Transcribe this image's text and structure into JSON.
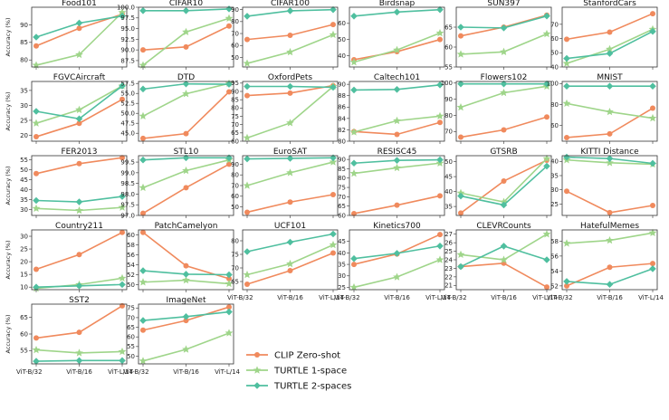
{
  "figure": {
    "ylabel": "Accuracy (%)",
    "x_categories": [
      "ViT-B/32",
      "ViT-B/16",
      "ViT-L/14"
    ]
  },
  "legend": {
    "items": [
      {
        "label": "CLIP Zero-shot",
        "color": "#f08a5d",
        "marker": "circle"
      },
      {
        "label": "TURTLE 1-space",
        "color": "#9fd58a",
        "marker": "star"
      },
      {
        "label": "TURTLE 2-spaces",
        "color": "#4fbf9f",
        "marker": "diamond"
      }
    ]
  },
  "chart_data": [
    {
      "type": "line",
      "title": "Food101",
      "ylim": [
        78,
        95
      ],
      "yticks": [
        80,
        85,
        90
      ],
      "series": [
        {
          "name": "CLIP Zero-shot",
          "values": [
            84,
            89,
            93
          ]
        },
        {
          "name": "TURTLE 1-space",
          "values": [
            78.5,
            81.5,
            93.5
          ]
        },
        {
          "name": "TURTLE 2-spaces",
          "values": [
            86.5,
            90.5,
            92.5
          ]
        }
      ]
    },
    {
      "type": "line",
      "title": "CIFAR10",
      "ylim": [
        86,
        100
      ],
      "yticks": [
        87.5,
        90.0,
        92.5,
        95.0,
        97.5,
        100.0
      ],
      "series": [
        {
          "name": "CLIP Zero-shot",
          "values": [
            90,
            90.7,
            95.6
          ]
        },
        {
          "name": "TURTLE 1-space",
          "values": [
            86.4,
            94.2,
            97.4
          ]
        },
        {
          "name": "TURTLE 2-spaces",
          "values": [
            99.2,
            99.2,
            99.6
          ]
        }
      ]
    },
    {
      "type": "line",
      "title": "CIFAR100",
      "ylim": [
        42,
        92
      ],
      "yticks": [
        50,
        60,
        70,
        80,
        90
      ],
      "series": [
        {
          "name": "CLIP Zero-shot",
          "values": [
            65,
            68.5,
            77.5
          ]
        },
        {
          "name": "TURTLE 1-space",
          "values": [
            45,
            54.5,
            69
          ]
        },
        {
          "name": "TURTLE 2-spaces",
          "values": [
            84.5,
            89,
            90
          ]
        }
      ]
    },
    {
      "type": "line",
      "title": "Birdsnap",
      "ylim": [
        33,
        70
      ],
      "yticks": [
        40,
        50,
        60
      ],
      "series": [
        {
          "name": "CLIP Zero-shot",
          "values": [
            37.5,
            42.5,
            50
          ]
        },
        {
          "name": "TURTLE 1-space",
          "values": [
            36,
            43.5,
            54
          ]
        },
        {
          "name": "TURTLE 2-spaces",
          "values": [
            64.5,
            67,
            68.5
          ]
        }
      ]
    },
    {
      "type": "line",
      "title": "SUN397",
      "ylim": [
        55,
        70
      ],
      "yticks": [
        55,
        60,
        65
      ],
      "series": [
        {
          "name": "CLIP Zero-shot",
          "values": [
            62.8,
            65,
            68
          ]
        },
        {
          "name": "TURTLE 1-space",
          "values": [
            58.2,
            58.8,
            63.3
          ]
        },
        {
          "name": "TURTLE 2-spaces",
          "values": [
            65,
            64.8,
            67.8
          ]
        }
      ]
    },
    {
      "type": "line",
      "title": "StanfordCars",
      "ylim": [
        40,
        82
      ],
      "yticks": [
        40,
        50,
        60,
        70
      ],
      "series": [
        {
          "name": "CLIP Zero-shot",
          "values": [
            59.5,
            64.5,
            77.5
          ]
        },
        {
          "name": "TURTLE 1-space",
          "values": [
            42.5,
            52.5,
            66.5
          ]
        },
        {
          "name": "TURTLE 2-spaces",
          "values": [
            46,
            49.5,
            65
          ]
        }
      ]
    },
    {
      "type": "line",
      "title": "FGVCAircraft",
      "ylim": [
        18,
        38
      ],
      "yticks": [
        20,
        25,
        30,
        35
      ],
      "series": [
        {
          "name": "CLIP Zero-shot",
          "values": [
            19.5,
            24,
            32
          ]
        },
        {
          "name": "TURTLE 1-space",
          "values": [
            24,
            28.5,
            36.5
          ]
        },
        {
          "name": "TURTLE 2-spaces",
          "values": [
            28,
            25.5,
            36.5
          ]
        }
      ]
    },
    {
      "type": "line",
      "title": "DTD",
      "ylim": [
        43,
        58
      ],
      "yticks": [
        45.0,
        47.5,
        50.0,
        52.5,
        55.0,
        57.5
      ],
      "series": [
        {
          "name": "CLIP Zero-shot",
          "values": [
            43.7,
            44.9,
            55.4
          ]
        },
        {
          "name": "TURTLE 1-space",
          "values": [
            49.3,
            54.9,
            57.5
          ]
        },
        {
          "name": "TURTLE 2-spaces",
          "values": [
            56.1,
            57.4,
            57.3
          ]
        }
      ]
    },
    {
      "type": "line",
      "title": "OxfordPets",
      "ylim": [
        60,
        96
      ],
      "yticks": [
        60,
        65,
        70,
        75,
        80,
        85,
        90,
        95
      ],
      "series": [
        {
          "name": "CLIP Zero-shot",
          "values": [
            87.5,
            89,
            93.5
          ]
        },
        {
          "name": "TURTLE 1-space",
          "values": [
            62,
            71,
            93
          ]
        },
        {
          "name": "TURTLE 2-spaces",
          "values": [
            93,
            93,
            92.5
          ]
        }
      ]
    },
    {
      "type": "line",
      "title": "Caltech101",
      "ylim": [
        80,
        90.5
      ],
      "yticks": [
        80,
        82,
        84,
        86,
        88,
        90
      ],
      "series": [
        {
          "name": "CLIP Zero-shot",
          "values": [
            81.7,
            81.2,
            83.3
          ]
        },
        {
          "name": "TURTLE 1-space",
          "values": [
            81.6,
            83.6,
            84.4
          ]
        },
        {
          "name": "TURTLE 2-spaces",
          "values": [
            89,
            89.1,
            89.9
          ]
        }
      ]
    },
    {
      "type": "line",
      "title": "Flowers102",
      "ylim": [
        64,
        101
      ],
      "yticks": [
        70,
        80,
        90,
        100
      ],
      "series": [
        {
          "name": "CLIP Zero-shot",
          "values": [
            66.5,
            71,
            79
          ]
        },
        {
          "name": "TURTLE 1-space",
          "values": [
            85,
            94,
            98
          ]
        },
        {
          "name": "TURTLE 2-spaces",
          "values": [
            99.5,
            99.5,
            99.5
          ]
        }
      ]
    },
    {
      "type": "line",
      "title": "MNIST",
      "ylim": [
        45,
        102
      ],
      "yticks": [
        60,
        80,
        100
      ],
      "series": [
        {
          "name": "CLIP Zero-shot",
          "values": [
            48.5,
            52,
            76.5
          ]
        },
        {
          "name": "TURTLE 1-space",
          "values": [
            81,
            73,
            67
          ]
        },
        {
          "name": "TURTLE 2-spaces",
          "values": [
            97.5,
            97.5,
            97.5
          ]
        }
      ]
    },
    {
      "type": "line",
      "title": "FER2013",
      "ylim": [
        27,
        57
      ],
      "yticks": [
        30,
        35,
        40,
        45,
        50,
        55
      ],
      "series": [
        {
          "name": "CLIP Zero-shot",
          "values": [
            48,
            53,
            56
          ]
        },
        {
          "name": "TURTLE 1-space",
          "values": [
            30.5,
            29.5,
            31
          ]
        },
        {
          "name": "TURTLE 2-spaces",
          "values": [
            34.5,
            33.8,
            36.5
          ]
        }
      ]
    },
    {
      "type": "line",
      "title": "STL10",
      "ylim": [
        97,
        99.8
      ],
      "yticks": [
        97.0,
        97.5,
        98.0,
        98.5,
        99.0,
        99.5
      ],
      "series": [
        {
          "name": "CLIP Zero-shot",
          "values": [
            97.1,
            98.3,
            99.4
          ]
        },
        {
          "name": "TURTLE 1-space",
          "values": [
            98.3,
            99.1,
            99.6
          ]
        },
        {
          "name": "TURTLE 2-spaces",
          "values": [
            99.6,
            99.7,
            99.7
          ]
        }
      ]
    },
    {
      "type": "line",
      "title": "EuroSAT",
      "ylim": [
        42,
        98
      ],
      "yticks": [
        50,
        60,
        70,
        80,
        90
      ],
      "series": [
        {
          "name": "CLIP Zero-shot",
          "values": [
            45,
            54.5,
            61.5
          ]
        },
        {
          "name": "TURTLE 1-space",
          "values": [
            70,
            82,
            92
          ]
        },
        {
          "name": "TURTLE 2-spaces",
          "values": [
            95,
            95.5,
            96
          ]
        }
      ]
    },
    {
      "type": "line",
      "title": "RESISC45",
      "ylim": [
        60,
        92
      ],
      "yticks": [
        60,
        65,
        70,
        75,
        80,
        85,
        90
      ],
      "series": [
        {
          "name": "CLIP Zero-shot",
          "values": [
            61,
            65.5,
            70.5
          ]
        },
        {
          "name": "TURTLE 1-space",
          "values": [
            82.5,
            85.5,
            88
          ]
        },
        {
          "name": "TURTLE 2-spaces",
          "values": [
            88,
            89.5,
            89.8
          ]
        }
      ]
    },
    {
      "type": "line",
      "title": "GTSRB",
      "ylim": [
        32,
        52
      ],
      "yticks": [
        35,
        40,
        45,
        50
      ],
      "series": [
        {
          "name": "CLIP Zero-shot",
          "values": [
            32.8,
            43.5,
            50.5
          ]
        },
        {
          "name": "TURTLE 1-space",
          "values": [
            39.5,
            36.5,
            51
          ]
        },
        {
          "name": "TURTLE 2-spaces",
          "values": [
            38.5,
            35.5,
            48.5
          ]
        }
      ]
    },
    {
      "type": "line",
      "title": "KITTI Distance",
      "ylim": [
        21,
        42
      ],
      "yticks": [
        25,
        30,
        35,
        40
      ],
      "series": [
        {
          "name": "CLIP Zero-shot",
          "values": [
            29.5,
            22,
            24.5
          ]
        },
        {
          "name": "TURTLE 1-space",
          "values": [
            40.5,
            39.5,
            39
          ]
        },
        {
          "name": "TURTLE 2-spaces",
          "values": [
            41.5,
            41,
            39.3
          ]
        }
      ]
    },
    {
      "type": "line",
      "title": "Country211",
      "ylim": [
        9,
        32.5
      ],
      "yticks": [
        10,
        15,
        20,
        25,
        30
      ],
      "series": [
        {
          "name": "CLIP Zero-shot",
          "values": [
            17,
            22.8,
            31.5
          ]
        },
        {
          "name": "TURTLE 1-space",
          "values": [
            9.5,
            11,
            13.5
          ]
        },
        {
          "name": "TURTLE 2-spaces",
          "values": [
            10,
            10.5,
            11
          ]
        }
      ]
    },
    {
      "type": "line",
      "title": "PatchCamelyon",
      "ylim": [
        49,
        61
      ],
      "yticks": [
        50,
        52,
        54,
        56,
        58,
        60
      ],
      "series": [
        {
          "name": "CLIP Zero-shot",
          "values": [
            60.5,
            53.8,
            51.2
          ]
        },
        {
          "name": "TURTLE 1-space",
          "values": [
            50.5,
            50.9,
            50.2
          ]
        },
        {
          "name": "TURTLE 2-spaces",
          "values": [
            52.8,
            52.1,
            52
          ]
        }
      ]
    },
    {
      "type": "line",
      "title": "UCF101",
      "ylim": [
        62,
        84
      ],
      "yticks": [
        65,
        70,
        75,
        80
      ],
      "series": [
        {
          "name": "CLIP Zero-shot",
          "values": [
            64,
            69,
            75.5
          ]
        },
        {
          "name": "TURTLE 1-space",
          "values": [
            67.5,
            71.5,
            78.5
          ]
        },
        {
          "name": "TURTLE 2-spaces",
          "values": [
            76,
            79.5,
            82.5
          ]
        }
      ]
    },
    {
      "type": "line",
      "title": "Kinetics700",
      "ylim": [
        24,
        50
      ],
      "yticks": [
        25,
        30,
        35,
        40,
        45
      ],
      "series": [
        {
          "name": "CLIP Zero-shot",
          "values": [
            35,
            39.5,
            48
          ]
        },
        {
          "name": "TURTLE 1-space",
          "values": [
            25,
            29.5,
            37
          ]
        },
        {
          "name": "TURTLE 2-spaces",
          "values": [
            37.5,
            39.8,
            43
          ]
        }
      ]
    },
    {
      "type": "line",
      "title": "CLEVRCounts",
      "ylim": [
        20.5,
        27.5
      ],
      "yticks": [
        21,
        22,
        23,
        24,
        25,
        26,
        27
      ],
      "series": [
        {
          "name": "CLIP Zero-shot",
          "values": [
            23.2,
            23.6,
            20.8
          ]
        },
        {
          "name": "TURTLE 1-space",
          "values": [
            24.6,
            24,
            27
          ]
        },
        {
          "name": "TURTLE 2-spaces",
          "values": [
            23.2,
            25.6,
            24
          ]
        }
      ]
    },
    {
      "type": "line",
      "title": "HatefulMemes",
      "ylim": [
        51.5,
        59.5
      ],
      "yticks": [
        52,
        54,
        56,
        58
      ],
      "series": [
        {
          "name": "CLIP Zero-shot",
          "values": [
            52,
            54.5,
            55
          ]
        },
        {
          "name": "TURTLE 1-space",
          "values": [
            57.7,
            58.1,
            59.1
          ]
        },
        {
          "name": "TURTLE 2-spaces",
          "values": [
            52.6,
            52.2,
            54.3
          ]
        }
      ]
    },
    {
      "type": "line",
      "title": "SST2",
      "ylim": [
        51,
        69
      ],
      "yticks": [
        55,
        60,
        65
      ],
      "series": [
        {
          "name": "CLIP Zero-shot",
          "values": [
            58.8,
            60.5,
            68.5
          ]
        },
        {
          "name": "TURTLE 1-space",
          "values": [
            55.2,
            54.3,
            54.7
          ]
        },
        {
          "name": "TURTLE 2-spaces",
          "values": [
            51.8,
            52,
            52
          ]
        }
      ]
    },
    {
      "type": "line",
      "title": "ImageNet",
      "ylim": [
        46,
        77
      ],
      "yticks": [
        50,
        55,
        60,
        65,
        70,
        75
      ],
      "series": [
        {
          "name": "CLIP Zero-shot",
          "values": [
            63.5,
            68.5,
            75.5
          ]
        },
        {
          "name": "TURTLE 1-space",
          "values": [
            47.5,
            53.5,
            62
          ]
        },
        {
          "name": "TURTLE 2-spaces",
          "values": [
            68.5,
            70.5,
            73
          ]
        }
      ]
    }
  ]
}
